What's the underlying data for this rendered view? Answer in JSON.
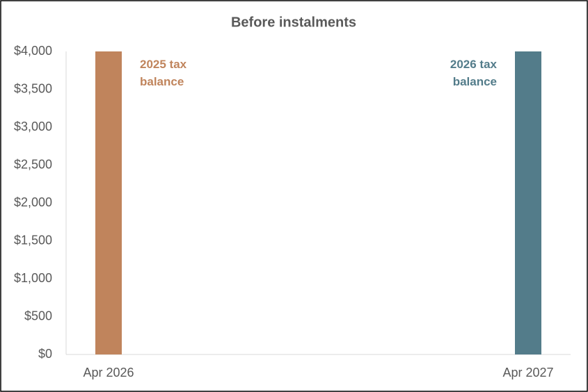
{
  "chart_data": {
    "type": "bar",
    "title": "Before instalments",
    "categories": [
      "Apr 2026",
      "Apr 2027"
    ],
    "series": [
      {
        "name": "2025 tax balance",
        "color": "#c0845c",
        "values": [
          4000,
          null
        ]
      },
      {
        "name": "2026 tax balance",
        "color": "#537c8a",
        "values": [
          null,
          4000
        ]
      }
    ],
    "ylim": [
      0,
      4000
    ],
    "yticks": [
      {
        "value": 0,
        "label": "$0"
      },
      {
        "value": 500,
        "label": "$500"
      },
      {
        "value": 1000,
        "label": "$1,000"
      },
      {
        "value": 1500,
        "label": "$1,500"
      },
      {
        "value": 2000,
        "label": "$2,000"
      },
      {
        "value": 2500,
        "label": "$2,500"
      },
      {
        "value": 3000,
        "label": "$3,000"
      },
      {
        "value": 3500,
        "label": "$3,500"
      },
      {
        "value": 4000,
        "label": "$4,000"
      }
    ],
    "grid": false
  }
}
